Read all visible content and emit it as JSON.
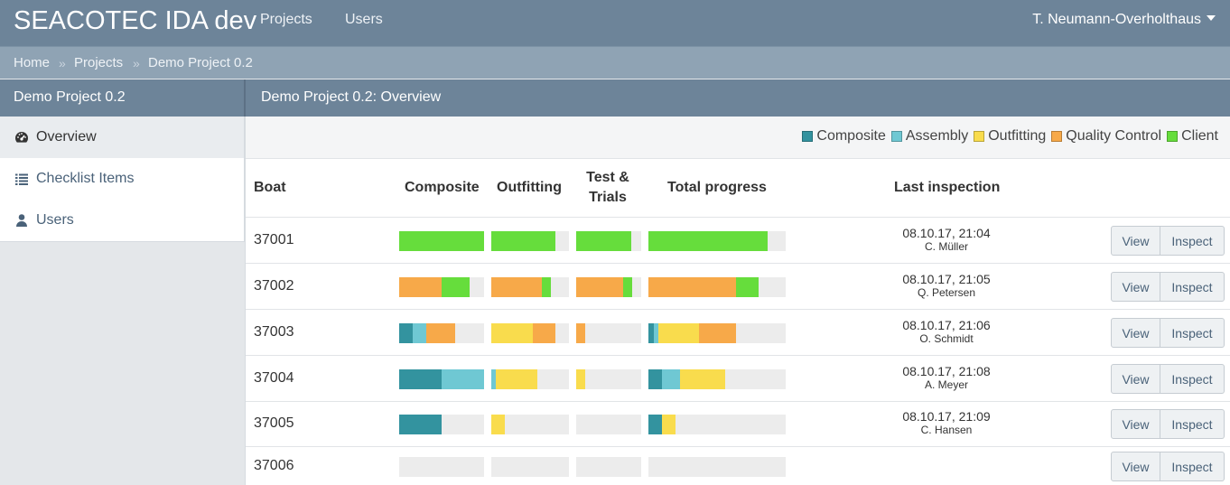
{
  "app": {
    "title": "SEACOTEC IDA dev"
  },
  "nav": {
    "items": [
      "Projects",
      "Users"
    ],
    "user": "T. Neumann-Overholthaus"
  },
  "breadcrumb": [
    "Home",
    "Projects",
    "Demo Project 0.2"
  ],
  "breadcrumb_sep": "»",
  "sidebar": {
    "title": "Demo Project 0.2",
    "items": [
      {
        "label": "Overview",
        "icon": "dashboard-icon",
        "active": true
      },
      {
        "label": "Checklist Items",
        "icon": "list-icon",
        "active": false
      },
      {
        "label": "Users",
        "icon": "user-icon",
        "active": false
      }
    ]
  },
  "panel": {
    "title": "Demo Project 0.2: Overview"
  },
  "legend": [
    {
      "label": "Composite",
      "color": "#33939f"
    },
    {
      "label": "Assembly",
      "color": "#6fc8d3"
    },
    {
      "label": "Outfitting",
      "color": "#f9dc4d"
    },
    {
      "label": "Quality Control",
      "color": "#f7a949"
    },
    {
      "label": "Client",
      "color": "#66dd3c"
    }
  ],
  "table": {
    "headers": {
      "boat": "Boat",
      "composite": "Composite",
      "outfitting": "Outfitting",
      "test_line1": "Test &",
      "test_line2": "Trials",
      "total": "Total progress",
      "last": "Last inspection"
    },
    "buttons": {
      "view": "View",
      "inspect": "Inspect"
    },
    "rows": [
      {
        "boat": "37001",
        "time": "08.10.17, 21:04",
        "user": "C. Müller",
        "composite": [
          0,
          0,
          0,
          0,
          1.0
        ],
        "outfitting": [
          0,
          0,
          0,
          0,
          0.82
        ],
        "trials": [
          0,
          0,
          0,
          0,
          0.85
        ],
        "total": [
          0,
          0,
          0,
          0,
          0.87
        ]
      },
      {
        "boat": "37002",
        "time": "08.10.17, 21:05",
        "user": "Q. Petersen",
        "composite": [
          0,
          0,
          0,
          0.5,
          0.33
        ],
        "outfitting": [
          0,
          0,
          0,
          0.65,
          0.12
        ],
        "trials": [
          0,
          0,
          0,
          0.72,
          0.14
        ],
        "total": [
          0,
          0,
          0,
          0.64,
          0.16
        ]
      },
      {
        "boat": "37003",
        "time": "08.10.17, 21:06",
        "user": "O. Schmidt",
        "composite": [
          0.16,
          0.16,
          0,
          0.34,
          0
        ],
        "outfitting": [
          0,
          0,
          0.53,
          0.3,
          0
        ],
        "trials": [
          0,
          0,
          0,
          0.14,
          0
        ],
        "total": [
          0.04,
          0.03,
          0.3,
          0.27,
          0
        ]
      },
      {
        "boat": "37004",
        "time": "08.10.17, 21:08",
        "user": "A. Meyer",
        "composite": [
          0.5,
          0.5,
          0,
          0,
          0
        ],
        "outfitting": [
          0,
          0.06,
          0.53,
          0,
          0
        ],
        "trials": [
          0,
          0,
          0.14,
          0,
          0
        ],
        "total": [
          0.1,
          0.13,
          0.33,
          0,
          0
        ]
      },
      {
        "boat": "37005",
        "time": "08.10.17, 21:09",
        "user": "C. Hansen",
        "composite": [
          0.5,
          0,
          0,
          0,
          0
        ],
        "outfitting": [
          0,
          0,
          0.17,
          0,
          0
        ],
        "trials": [
          0,
          0,
          0,
          0,
          0
        ],
        "total": [
          0.1,
          0,
          0.1,
          0,
          0
        ]
      },
      {
        "boat": "37006",
        "time": "",
        "user": "",
        "composite": [
          0,
          0,
          0,
          0,
          0
        ],
        "outfitting": [
          0,
          0,
          0,
          0,
          0
        ],
        "trials": [
          0,
          0,
          0,
          0,
          0
        ],
        "total": [
          0,
          0,
          0,
          0,
          0
        ]
      }
    ]
  }
}
